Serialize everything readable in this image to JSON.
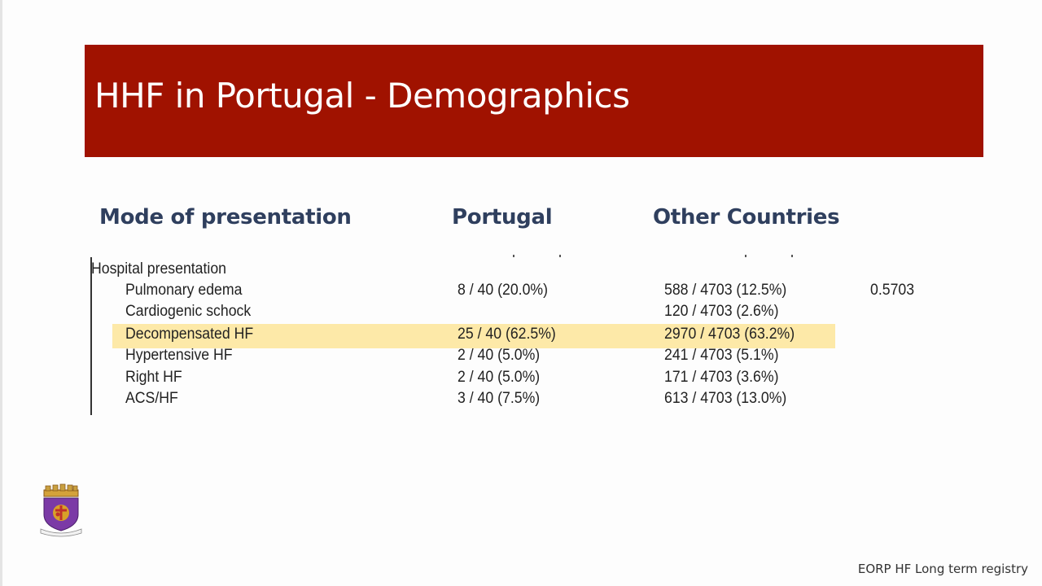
{
  "slide": {
    "title": "HHF in Portugal - Demographics",
    "footer": "EORP  HF Long term registry",
    "logo_icon": "coat-of-arms-crest",
    "colors": {
      "banner": "#a01200",
      "heading": "#2f3f5e",
      "highlight": "#fde9a8"
    }
  },
  "headers": {
    "mode": "Mode of presentation",
    "portugal": "Portugal",
    "other": "Other Countries"
  },
  "table": {
    "section_label": "Hospital presentation",
    "p_value": "0.5703",
    "rows": [
      {
        "label": "Pulmonary edema",
        "portugal": "8 / 40 (20.0%)",
        "other": "588 / 4703 (12.5%)"
      },
      {
        "label": "Cardiogenic schock",
        "portugal": "",
        "other": "120 / 4703 (2.6%)"
      },
      {
        "label": "Decompensated HF",
        "portugal": "25 / 40 (62.5%)",
        "other": "2970 / 4703 (63.2%)",
        "highlighted": true
      },
      {
        "label": "Hypertensive HF",
        "portugal": "2 / 40 (5.0%)",
        "other": "241 / 4703 (5.1%)"
      },
      {
        "label": "Right HF",
        "portugal": "2 / 40 (5.0%)",
        "other": "171 / 4703 (3.6%)"
      },
      {
        "label": "ACS/HF",
        "portugal": "3 / 40 (7.5%)",
        "other": "613 / 4703 (13.0%)"
      }
    ]
  }
}
